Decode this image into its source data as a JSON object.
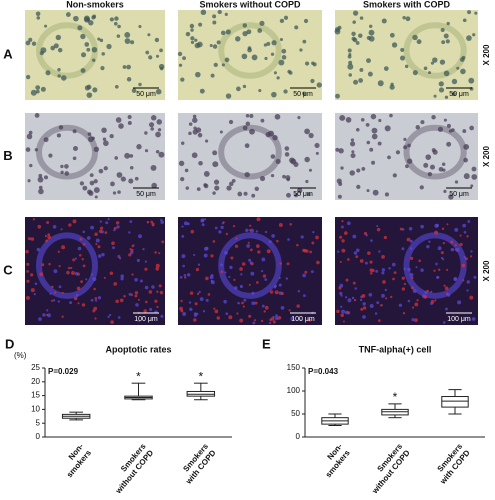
{
  "column_headers": [
    "Non-smokers",
    "Smokers without COPD",
    "Smokers with COPD"
  ],
  "rows": [
    {
      "label": "A",
      "magnification": "X 200",
      "scale_bars": [
        "50 μm",
        "50 μm",
        "50 μm"
      ]
    },
    {
      "label": "B",
      "magnification": "X 200",
      "scale_bars": [
        "50 μm",
        "50 μm",
        "50 μm"
      ]
    },
    {
      "label": "C",
      "magnification": "X 200",
      "scale_bars": [
        "100 μm",
        "100 μm",
        "100 μm"
      ]
    }
  ],
  "chart_data": [
    {
      "type": "box",
      "panel": "D",
      "title": "Apoptotic rates",
      "y_label": "(%)",
      "annotation": "P=0.029",
      "categories": [
        [
          "Non-",
          "smokers"
        ],
        [
          "Smokers",
          "without COPD"
        ],
        [
          "Smokers",
          "with COPD"
        ]
      ],
      "boxes": [
        {
          "min": 6.2,
          "q1": 6.8,
          "median": 7.5,
          "q3": 8.2,
          "max": 9
        },
        {
          "min": 13.5,
          "q1": 13.8,
          "median": 14.3,
          "q3": 14.8,
          "max": 19.5
        },
        {
          "min": 13.5,
          "q1": 14.8,
          "median": 15.5,
          "q3": 16.5,
          "max": 19.5
        }
      ],
      "significance": [
        null,
        "*",
        "*"
      ],
      "ylim": [
        0,
        25
      ],
      "yticks": [
        0,
        5,
        10,
        15,
        20,
        25
      ]
    },
    {
      "type": "box",
      "panel": "E",
      "title": "TNF-alpha(+) cell",
      "annotation": "P=0.043",
      "categories": [
        [
          "Non-",
          "smokers"
        ],
        [
          "Smokers",
          "without COPD"
        ],
        [
          "Smokers",
          "with COPD"
        ]
      ],
      "boxes": [
        {
          "min": 25,
          "q1": 28,
          "median": 35,
          "q3": 42,
          "max": 50
        },
        {
          "min": 42,
          "q1": 48,
          "median": 55,
          "q3": 60,
          "max": 72
        },
        {
          "min": 50,
          "q1": 65,
          "median": 78,
          "q3": 88,
          "max": 103
        }
      ],
      "significance": [
        null,
        "*",
        null
      ],
      "ylim": [
        0,
        150
      ],
      "yticks": [
        0,
        50,
        100,
        150
      ]
    }
  ]
}
